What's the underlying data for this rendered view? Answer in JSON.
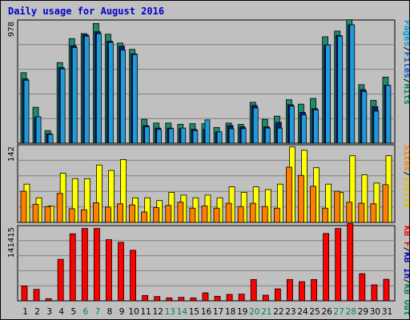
{
  "chart_data": {
    "type": "bar",
    "title": "Daily usage for August 2016",
    "categories": [
      "1",
      "2",
      "3",
      "4",
      "5",
      "6",
      "7",
      "8",
      "9",
      "10",
      "11",
      "12",
      "13",
      "14",
      "15",
      "16",
      "17",
      "18",
      "19",
      "20",
      "21",
      "22",
      "23",
      "24",
      "25",
      "26",
      "27",
      "28",
      "29",
      "30",
      "31"
    ],
    "weekend_days": [
      "6",
      "7",
      "13",
      "14",
      "20",
      "21",
      "27",
      "28"
    ],
    "panels": [
      {
        "ymax_label": "978",
        "ymax": 978,
        "series": [
          {
            "name": "Hits",
            "color": "#1f8a6c",
            "values": [
              560,
              285,
              100,
              640,
              830,
              870,
              950,
              865,
              795,
              745,
              190,
              160,
              160,
              150,
              155,
              155,
              125,
              160,
              150,
              325,
              190,
              215,
              345,
              310,
              355,
              845,
              890,
              980,
              465,
              340,
              525
            ]
          },
          {
            "name": "Files",
            "color": "#1e9bdb",
            "values": [
              510,
              205,
              75,
              600,
              775,
              860,
              885,
              810,
              770,
              710,
              140,
              120,
              120,
              115,
              110,
              110,
              90,
              140,
              130,
              300,
              130,
              165,
              305,
              245,
              275,
              780,
              855,
              940,
              425,
              290,
              460
            ]
          },
          {
            "name": "Pages",
            "color": "#1e9bdb",
            "values": [
              500,
              210,
              70,
              590,
              760,
              850,
              870,
              800,
              740,
              705,
              130,
              110,
              115,
              120,
              100,
              185,
              90,
              115,
              115,
              280,
              120,
              120,
              295,
              225,
              265,
              780,
              850,
              940,
              410,
              255,
              460
            ]
          }
        ]
      },
      {
        "ymax_label": "142",
        "ymax": 142,
        "series": [
          {
            "name": "Visits",
            "color": "#ffff00",
            "values": [
              70,
              45,
              30,
              90,
              80,
              80,
              105,
              95,
              115,
              45,
              45,
              40,
              55,
              50,
              45,
              50,
              45,
              65,
              55,
              65,
              60,
              70,
              138,
              132,
              100,
              70,
              55,
              122,
              87,
              72,
              122
            ]
          },
          {
            "name": "Sites",
            "color": "#ff8000",
            "values": [
              57,
              33,
              29,
              53,
              25,
              23,
              36,
              28,
              34,
              32,
              19,
              27,
              31,
              37,
              26,
              30,
              26,
              35,
              29,
              35,
              29,
              26,
              101,
              86,
              66,
              26,
              57,
              37,
              35,
              34,
              69
            ]
          }
        ]
      },
      {
        "ymax_label": "141415",
        "ymax": 141415,
        "series": [
          {
            "name": "KB F",
            "color": "#ff0000",
            "values": []
          },
          {
            "name": "KB In",
            "color": "#ff0000",
            "values": []
          },
          {
            "name": "KB Out",
            "color": "#ff0000",
            "values": []
          },
          {
            "name": "KB F",
            "color": "#ff0000",
            "values": [
              28000,
              21500,
              4000,
              78000,
              126000,
              136000,
              136000,
              115000,
              110000,
              95000,
              10000,
              8000,
              5500,
              6500,
              5500,
              15000,
              8500,
              12000,
              12500,
              40000,
              10500,
              22500,
              40000,
              36000,
              40000,
              126500,
              136000,
              145000,
              51000,
              30000,
              40500
            ]
          }
        ]
      }
    ],
    "right_labels": [
      {
        "parts": [
          {
            "text": "Pages",
            "color": "#00a0e0"
          },
          {
            "text": "/",
            "color": "#000000"
          },
          {
            "text": "Files",
            "color": "#0060c0"
          },
          {
            "text": "/",
            "color": "#000000"
          },
          {
            "text": "Hits",
            "color": "#008060"
          }
        ]
      },
      {
        "parts": [
          {
            "text": "Sites",
            "color": "#ff8000"
          },
          {
            "text": "/",
            "color": "#000000"
          },
          {
            "text": "Visits",
            "color": "#e0c000"
          }
        ]
      },
      {
        "parts": [
          {
            "text": "KB F",
            "color": "#ff0000"
          },
          {
            "text": "/",
            "color": "#000000"
          },
          {
            "text": "KB In",
            "color": "#0000c0"
          },
          {
            "text": "/",
            "color": "#000000"
          },
          {
            "text": "KB Out",
            "color": "#008060"
          }
        ]
      }
    ],
    "grid": true
  }
}
